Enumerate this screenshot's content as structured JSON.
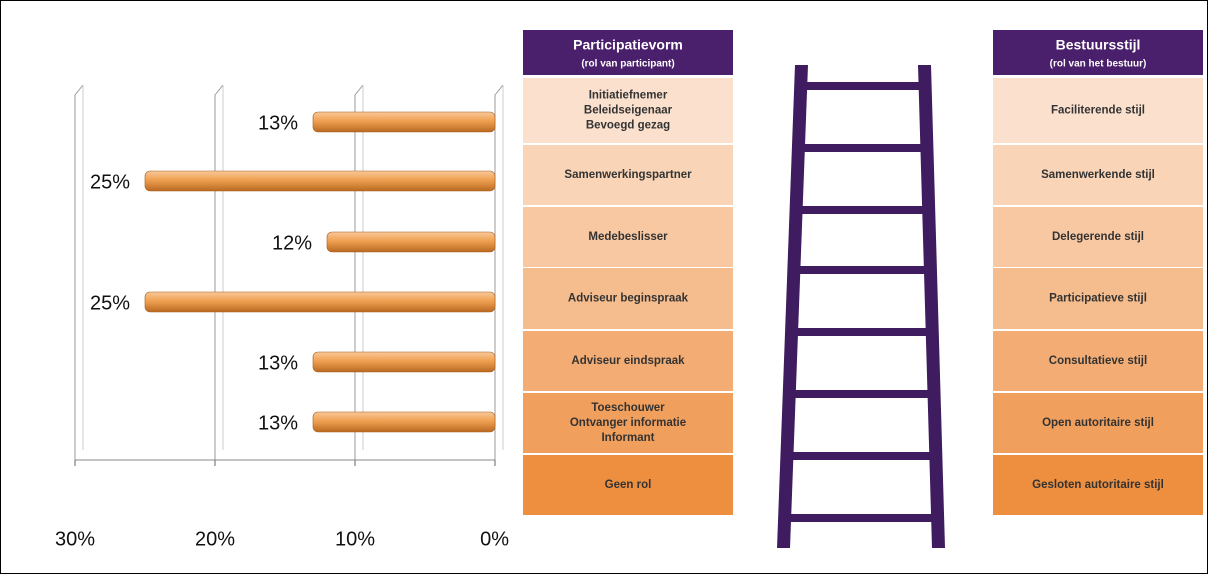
{
  "chart_data": {
    "type": "bar",
    "orientation": "horizontal",
    "color": "#f0a050",
    "values": [
      13,
      25,
      12,
      25,
      13,
      13
    ],
    "value_labels": [
      "13%",
      "25%",
      "12%",
      "25%",
      "13%",
      "13%"
    ],
    "xlim": [
      30,
      0
    ],
    "xticks": [
      {
        "value": 30,
        "label": "30%"
      },
      {
        "value": 20,
        "label": "20%"
      },
      {
        "value": 10,
        "label": "10%"
      },
      {
        "value": 0,
        "label": "0%"
      }
    ],
    "grid": true
  },
  "left_table": {
    "title": "Participatievorm",
    "subtitle": "(rol van participant)",
    "rows": [
      [
        "Initiatiefnemer",
        "Beleidseigenaar",
        "Bevoegd gezag"
      ],
      [
        "Samenwerkingspartner"
      ],
      [
        "Medebeslisser"
      ],
      [
        "Adviseur beginspraak"
      ],
      [
        "Adviseur eindspraak"
      ],
      [
        "Toeschouwer",
        "Ontvanger informatie",
        "Informant"
      ],
      [
        "Geen rol"
      ]
    ]
  },
  "right_table": {
    "title": "Bestuursstijl",
    "subtitle": "(rol van het bestuur)",
    "rows": [
      [
        "Faciliterende stijl"
      ],
      [
        "Samenwerkende stijl"
      ],
      [
        "Delegerende stijl"
      ],
      [
        "Participatieve stijl"
      ],
      [
        "Consultatieve stijl"
      ],
      [
        "Open autoritaire stijl"
      ],
      [
        "Gesloten autoritaire stijl"
      ]
    ]
  }
}
